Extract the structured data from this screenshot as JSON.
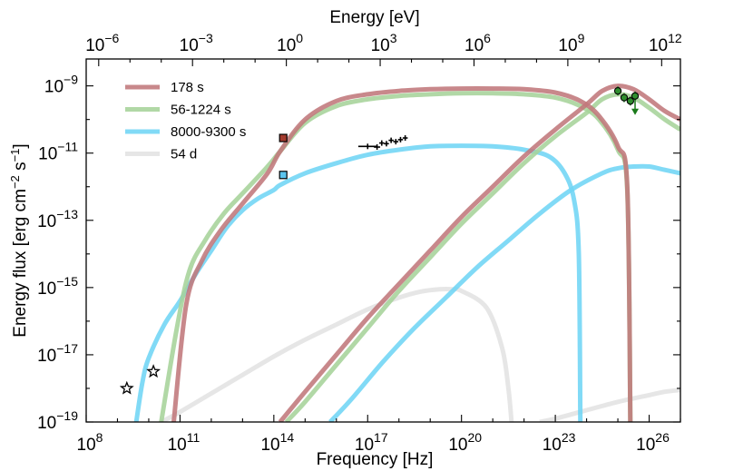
{
  "chart_data": {
    "type": "line",
    "title": "",
    "xlabel": "Frequency [Hz]",
    "ylabel_base": "Energy flux [erg cm",
    "ylabel_sup1": "−2",
    "ylabel_mid": " s",
    "ylabel_sup2": "−1",
    "ylabel_end": "]",
    "x2label": "Energy [eV]",
    "xscale": "log",
    "yscale": "log",
    "xlim_log10": [
      8,
      27
    ],
    "ylim_log10": [
      -19,
      -8.2
    ],
    "x2lim_log10": [
      -6.4,
      12.6
    ],
    "grid": false,
    "legend_position": "top-left",
    "x_ticks": [
      {
        "base": "10",
        "exp": "8",
        "value": 8
      },
      {
        "base": "10",
        "exp": "11",
        "value": 11
      },
      {
        "base": "10",
        "exp": "14",
        "value": 14
      },
      {
        "base": "10",
        "exp": "17",
        "value": 17
      },
      {
        "base": "10",
        "exp": "20",
        "value": 20
      },
      {
        "base": "10",
        "exp": "23",
        "value": 23
      },
      {
        "base": "10",
        "exp": "26",
        "value": 26
      }
    ],
    "y_ticks": [
      {
        "base": "10",
        "exp": "−19",
        "value": -19
      },
      {
        "base": "10",
        "exp": "−17",
        "value": -17
      },
      {
        "base": "10",
        "exp": "−15",
        "value": -15
      },
      {
        "base": "10",
        "exp": "−13",
        "value": -13
      },
      {
        "base": "10",
        "exp": "−11",
        "value": -11
      },
      {
        "base": "10",
        "exp": "−9",
        "value": -9
      }
    ],
    "x2_ticks": [
      {
        "base": "10",
        "exp": "−6",
        "value": -6
      },
      {
        "base": "10",
        "exp": "−3",
        "value": -3
      },
      {
        "base": "10",
        "exp": "0",
        "value": 0
      },
      {
        "base": "10",
        "exp": "3",
        "value": 3
      },
      {
        "base": "10",
        "exp": "6",
        "value": 6
      },
      {
        "base": "10",
        "exp": "9",
        "value": 9
      },
      {
        "base": "10",
        "exp": "12",
        "value": 12
      }
    ],
    "series": [
      {
        "name": "178 s",
        "color": "#c0787b",
        "components": [
          {
            "x": [
              10.8,
              11.2,
              11.7,
              12.3,
              13.0,
              13.8,
              14.2,
              15.0,
              16.0,
              17.0,
              18.0,
              19.0,
              20.0,
              21.0,
              22.0,
              23.0,
              23.8,
              24.4,
              25.0,
              25.3,
              25.4
            ],
            "y": [
              -19.0,
              -15.5,
              -14.2,
              -13.3,
              -12.5,
              -11.6,
              -10.95,
              -10.0,
              -9.45,
              -9.25,
              -9.15,
              -9.1,
              -9.08,
              -9.08,
              -9.1,
              -9.2,
              -9.45,
              -9.9,
              -10.8,
              -12.0,
              -19.0
            ]
          },
          {
            "x": [
              14.2,
              15.0,
              16.0,
              17.0,
              18.0,
              19.0,
              20.0,
              21.0,
              22.0,
              23.0,
              24.0,
              24.5,
              25.0,
              25.5,
              26.0,
              26.5,
              27.0
            ],
            "y": [
              -19.0,
              -18.1,
              -17.0,
              -15.9,
              -14.9,
              -13.9,
              -12.9,
              -12.0,
              -11.1,
              -10.3,
              -9.55,
              -9.15,
              -9.0,
              -9.1,
              -9.4,
              -9.75,
              -10.0
            ]
          }
        ]
      },
      {
        "name": "56-1224 s",
        "color": "#a6d39a",
        "components": [
          {
            "x": [
              10.4,
              10.9,
              11.3,
              11.8,
              12.4,
              13.0,
              13.8,
              14.2,
              15.0,
              16.0,
              17.0,
              18.0,
              19.0,
              20.0,
              21.0,
              22.0,
              23.0,
              23.8,
              24.4,
              25.0,
              25.3,
              25.4
            ],
            "y": [
              -19.0,
              -16.2,
              -14.5,
              -13.6,
              -12.8,
              -12.2,
              -11.4,
              -10.95,
              -10.1,
              -9.6,
              -9.4,
              -9.3,
              -9.25,
              -9.22,
              -9.22,
              -9.25,
              -9.35,
              -9.6,
              -10.0,
              -10.9,
              -12.1,
              -19.0
            ]
          },
          {
            "x": [
              14.4,
              15.0,
              16.0,
              17.0,
              18.0,
              19.0,
              20.0,
              21.0,
              22.0,
              23.0,
              24.0,
              24.5,
              25.0,
              25.5,
              26.0,
              26.5,
              27.0
            ],
            "y": [
              -19.0,
              -18.4,
              -17.3,
              -16.2,
              -15.1,
              -14.1,
              -13.1,
              -12.2,
              -11.3,
              -10.5,
              -9.8,
              -9.4,
              -9.25,
              -9.35,
              -9.65,
              -10.0,
              -10.3
            ]
          }
        ]
      },
      {
        "name": "8000-9300 s",
        "color": "#6fd5f5",
        "components": [
          {
            "x": [
              9.6,
              9.8,
              10.0,
              10.5,
              11.0,
              11.5,
              12.0,
              12.5,
              13.0,
              13.5,
              14.0,
              14.2,
              15.0,
              16.0,
              17.0,
              18.0,
              19.0,
              20.0,
              21.0,
              22.0,
              22.8,
              23.3,
              23.6,
              23.75,
              23.8
            ],
            "y": [
              -19.0,
              -17.8,
              -17.1,
              -16.1,
              -15.4,
              -14.6,
              -13.9,
              -13.2,
              -12.7,
              -12.35,
              -12.1,
              -11.95,
              -11.6,
              -11.3,
              -11.05,
              -10.9,
              -10.8,
              -10.78,
              -10.8,
              -10.9,
              -11.1,
              -11.6,
              -12.4,
              -14.0,
              -19.0
            ]
          },
          {
            "x": [
              15.8,
              16.5,
              17.5,
              18.5,
              19.5,
              20.5,
              21.5,
              22.5,
              23.5,
              24.5,
              25.0,
              25.5,
              26.0,
              26.5,
              27.0
            ],
            "y": [
              -19.0,
              -18.3,
              -17.2,
              -16.2,
              -15.3,
              -14.4,
              -13.6,
              -12.8,
              -12.1,
              -11.6,
              -11.45,
              -11.4,
              -11.4,
              -11.5,
              -11.6
            ]
          }
        ]
      },
      {
        "name": "54 d",
        "color": "#e2e2e2",
        "components": [
          {
            "x": [
              10.4,
              11.0,
              12.0,
              13.0,
              14.0,
              15.0,
              16.0,
              17.0,
              18.0,
              18.7,
              19.3,
              19.7,
              20.0,
              20.8,
              21.3,
              21.5,
              21.6
            ],
            "y": [
              -19.0,
              -18.7,
              -18.15,
              -17.6,
              -17.05,
              -16.55,
              -16.1,
              -15.65,
              -15.3,
              -15.12,
              -15.05,
              -15.05,
              -15.1,
              -15.6,
              -16.8,
              -18.0,
              -19.0
            ]
          },
          {
            "x": [
              22.5,
              23.0,
              24.0,
              25.0,
              26.0,
              26.5,
              27.0
            ],
            "y": [
              -19.0,
              -18.9,
              -18.65,
              -18.4,
              -18.2,
              -18.1,
              -18.05
            ]
          }
        ]
      }
    ],
    "markers": {
      "squares": [
        {
          "x": 14.3,
          "y": -10.55,
          "fill": "#a33a2d"
        },
        {
          "x": 14.3,
          "y": -11.65,
          "fill": "#5bc4ee"
        }
      ],
      "stars": [
        {
          "x": 9.3,
          "y": -18.0
        },
        {
          "x": 10.15,
          "y": -17.5
        }
      ],
      "xray_points": [
        {
          "x": 17.0,
          "y": -10.8,
          "xerr": 0.3
        },
        {
          "x": 17.3,
          "y": -10.82,
          "xerr": 0.1
        },
        {
          "x": 17.45,
          "y": -10.7,
          "xerr": 0.08
        },
        {
          "x": 17.6,
          "y": -10.72,
          "xerr": 0.08
        },
        {
          "x": 17.75,
          "y": -10.62,
          "xerr": 0.08
        },
        {
          "x": 17.9,
          "y": -10.66,
          "xerr": 0.08
        },
        {
          "x": 18.05,
          "y": -10.6,
          "xerr": 0.08
        },
        {
          "x": 18.2,
          "y": -10.55,
          "xerr": 0.08
        }
      ],
      "gamma_points": [
        {
          "x": 25.0,
          "y": -9.15
        },
        {
          "x": 25.2,
          "y": -9.35
        },
        {
          "x": 25.4,
          "y": -9.45
        },
        {
          "x": 25.55,
          "y": -9.3
        }
      ],
      "gamma_upper_limit": {
        "x": 25.55,
        "y": -9.3
      }
    }
  }
}
